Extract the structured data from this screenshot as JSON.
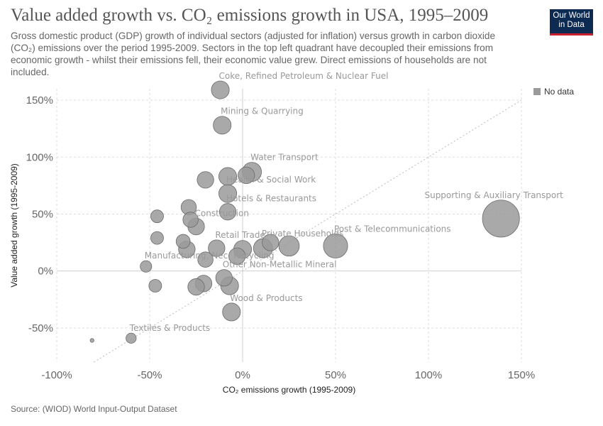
{
  "header": {
    "title": "Value added growth vs. CO₂ emissions growth in USA, 1995–2009",
    "subtitle": "Gross domestic product (GDP) growth of individual sectors (adjusted for inflation) versus growth in carbon dioxide (CO₂) emissions over the period 1995-2009. Sectors in the top left quadrant have decoupled their emissions from economic growth - whilst their emissions fell, their economic value grew. Direct emissions of households are not included."
  },
  "logo": {
    "line1": "Our World",
    "line2": "in Data",
    "bg_color": "#0d2a52",
    "accent_color": "#c8202f"
  },
  "legend": {
    "label": "No data",
    "color": "#9a9a9a"
  },
  "footer": {
    "source": "Source: (WIOD) World Input-Output Dataset"
  },
  "chart_data": {
    "type": "scatter",
    "xlabel": "CO₂ emissions growth (1995-2009)",
    "ylabel": "Value added growth (1995-2009)",
    "xlim": [
      -100,
      150
    ],
    "ylim": [
      -80,
      160
    ],
    "xticks": [
      -100,
      -50,
      0,
      50,
      100,
      150
    ],
    "yticks": [
      -50,
      0,
      50,
      100,
      150
    ],
    "xtick_labels": [
      "-100%",
      "-50%",
      "0%",
      "50%",
      "100%",
      "150%"
    ],
    "ytick_labels": [
      "-50%",
      "0%",
      "50%",
      "100%",
      "150%"
    ],
    "grid": true,
    "reference_line": "y = x",
    "legend_position": "top-right",
    "point_color": "#9a9a9a",
    "points": [
      {
        "x": -12,
        "y": 159,
        "label": "Coke, Refined Petroleum & Nuclear Fuel",
        "size": 1.4
      },
      {
        "x": -11,
        "y": 128,
        "label": "Mining & Quarrying",
        "size": 1.4
      },
      {
        "x": 5,
        "y": 87,
        "label": "Water Transport",
        "size": 1.5
      },
      {
        "x": -8,
        "y": 83,
        "label": "",
        "size": 1.4
      },
      {
        "x": 2,
        "y": 84,
        "label": "",
        "size": 1.3
      },
      {
        "x": -20,
        "y": 80,
        "label": "",
        "size": 1.3
      },
      {
        "x": -8,
        "y": 68,
        "label": "Health & Social Work",
        "size": 1.4
      },
      {
        "x": -8,
        "y": 52,
        "label": "Hotels & Restaurants",
        "size": 1.3
      },
      {
        "x": -29,
        "y": 56,
        "label": "",
        "size": 1.2
      },
      {
        "x": -46,
        "y": 48,
        "label": "",
        "size": 1.0
      },
      {
        "x": -28,
        "y": 45,
        "label": "",
        "size": 1.2
      },
      {
        "x": -25,
        "y": 39,
        "label": "Construction",
        "size": 1.3
      },
      {
        "x": -46,
        "y": 29,
        "label": "",
        "size": 1.0
      },
      {
        "x": -32,
        "y": 26,
        "label": "",
        "size": 1.1
      },
      {
        "x": -30,
        "y": 19,
        "label": "",
        "size": 1.3
      },
      {
        "x": -14,
        "y": 20,
        "label": "Retail Trade",
        "size": 1.3
      },
      {
        "x": -20,
        "y": 10,
        "label": "",
        "size": 1.2
      },
      {
        "x": 0,
        "y": 19,
        "label": "",
        "size": 1.4
      },
      {
        "x": 11,
        "y": 20,
        "label": "Private Households",
        "size": 1.5
      },
      {
        "x": 15,
        "y": 25,
        "label": "",
        "size": 1.3
      },
      {
        "x": 25,
        "y": 22,
        "label": "",
        "size": 1.6
      },
      {
        "x": -3,
        "y": 13,
        "label": "",
        "size": 1.3
      },
      {
        "x": 50,
        "y": 22,
        "label": "Post & Telecommunications",
        "size": 1.9
      },
      {
        "x": 139,
        "y": 46,
        "label": "Supporting & Auxiliary Transport",
        "size": 2.9
      },
      {
        "x": -52,
        "y": 4,
        "label": "Manufacturing, Nec; Recycling",
        "size": 0.9
      },
      {
        "x": -10,
        "y": -6,
        "label": "Other Non-Metallic Mineral",
        "size": 1.3
      },
      {
        "x": -7,
        "y": -13,
        "label": "",
        "size": 1.4
      },
      {
        "x": -21,
        "y": -11,
        "label": "",
        "size": 1.3
      },
      {
        "x": -25,
        "y": -14,
        "label": "",
        "size": 1.3
      },
      {
        "x": -47,
        "y": -13,
        "label": "",
        "size": 1.0
      },
      {
        "x": -6,
        "y": -36,
        "label": "Wood & Products",
        "size": 1.4
      },
      {
        "x": -60,
        "y": -59,
        "label": "Textiles & Products",
        "size": 0.8
      },
      {
        "x": -81,
        "y": -61,
        "label": "",
        "size": 0.3
      }
    ]
  }
}
